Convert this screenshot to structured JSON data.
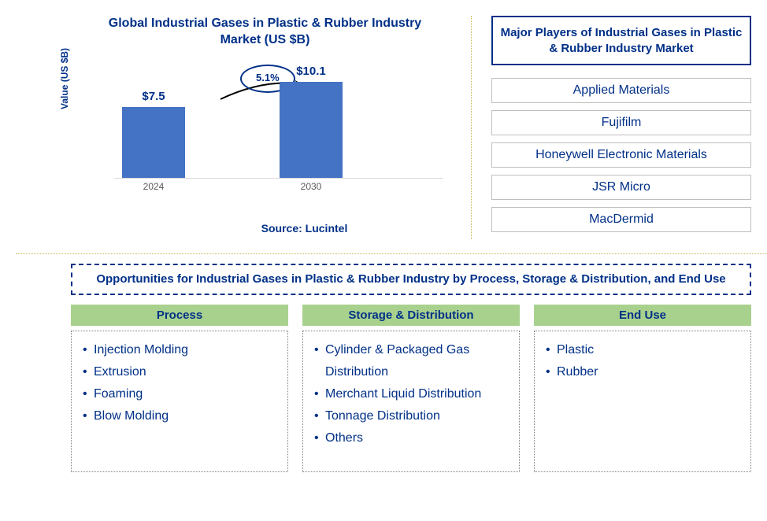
{
  "chart": {
    "title": "Global Industrial Gases in Plastic & Rubber Industry Market (US $B)",
    "y_axis_label": "Value (US $B)",
    "type": "bar",
    "categories": [
      "2024",
      "2030"
    ],
    "values": [
      7.5,
      10.1
    ],
    "value_labels": [
      "$7.5",
      "$10.1"
    ],
    "bar_color": "#4472c4",
    "ymax": 12,
    "growth_label": "5.1%",
    "title_color": "#003087",
    "text_color": "#003087",
    "baseline_color": "#d9d9d9",
    "source": "Source: Lucintel"
  },
  "players": {
    "title": "Major Players of Industrial Gases in Plastic & Rubber Industry Market",
    "items": [
      "Applied Materials",
      "Fujifilm",
      "Honeywell Electronic Materials",
      "JSR Micro",
      "MacDermid"
    ]
  },
  "opportunities": {
    "title": "Opportunities for Industrial Gases in Plastic & Rubber Industry by Process, Storage & Distribution, and End Use",
    "columns": [
      {
        "header": "Process",
        "items": [
          "Injection Molding",
          "Extrusion",
          "Foaming",
          "Blow Molding"
        ]
      },
      {
        "header": "Storage & Distribution",
        "items": [
          "Cylinder & Packaged Gas Distribution",
          "Merchant Liquid Distribution",
          "Tonnage Distribution",
          "Others"
        ]
      },
      {
        "header": "End Use",
        "items": [
          "Plastic",
          "Rubber"
        ]
      }
    ],
    "header_bg": "#a9d18e"
  }
}
